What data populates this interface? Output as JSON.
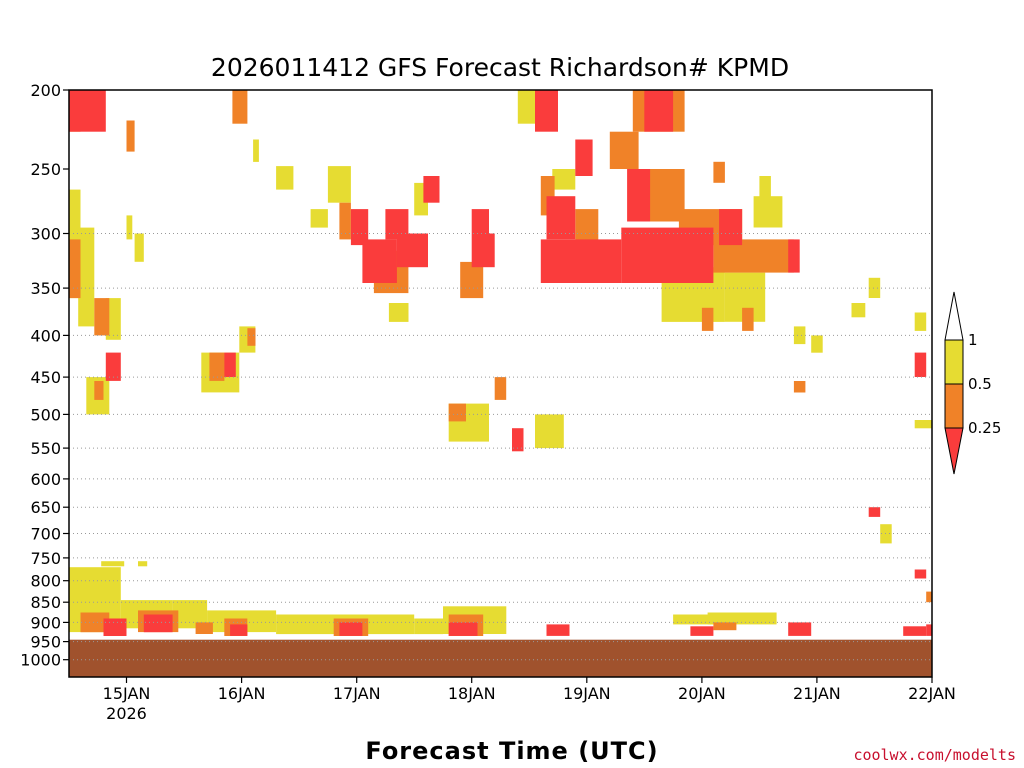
{
  "chart_data": {
    "type": "heatmap",
    "title": "2026011412 GFS Forecast Richardson# KPMD",
    "xlabel": "Forecast Time (UTC)",
    "x_axis": {
      "ticks": [
        {
          "label": "15JAN",
          "sub": "2026",
          "day": 15
        },
        {
          "label": "16JAN",
          "day": 16
        },
        {
          "label": "17JAN",
          "day": 17
        },
        {
          "label": "18JAN",
          "day": 18
        },
        {
          "label": "19JAN",
          "day": 19
        },
        {
          "label": "20JAN",
          "day": 20
        },
        {
          "label": "21JAN",
          "day": 21
        },
        {
          "label": "22JAN",
          "day": 22
        }
      ],
      "range_days": [
        14.5,
        22.0
      ]
    },
    "y_axis": {
      "unit": "hPa",
      "ticks": [
        200,
        250,
        300,
        350,
        400,
        450,
        500,
        550,
        600,
        650,
        700,
        750,
        800,
        850,
        900,
        950,
        1000
      ],
      "range": [
        200,
        1050
      ],
      "scale": "log-pressure",
      "gridlines": "dotted at 300, 350, 400, 450, 500, 550, 600, 650, 700, 750, 800, 850, 900, 950, 1000"
    },
    "legend": {
      "placement": "right",
      "levels": [
        {
          "label": "1"
        },
        {
          "label": "0.5"
        },
        {
          "label": "0.25"
        }
      ],
      "colors": {
        "above_1": "#ffffff",
        "0.5_to_1": "#e6dc32",
        "0.25_to_0.5": "#f08228",
        "below_0.25": "#fa3c3c"
      }
    },
    "ground_color": "#a0522d",
    "ground_level_hPa": 945,
    "regions": [
      {
        "cat": "red",
        "t": [
          14.5,
          14.82
        ],
        "p": [
          200,
          225
        ]
      },
      {
        "cat": "orange",
        "t": [
          14.5,
          14.6
        ],
        "p": [
          200,
          225
        ]
      },
      {
        "cat": "orange",
        "t": [
          15.0,
          15.07
        ],
        "p": [
          218,
          238
        ]
      },
      {
        "cat": "yellow",
        "t": [
          14.5,
          14.6
        ],
        "p": [
          265,
          360
        ]
      },
      {
        "cat": "orange",
        "t": [
          14.5,
          14.6
        ],
        "p": [
          305,
          360
        ]
      },
      {
        "cat": "yellow",
        "t": [
          14.58,
          14.72
        ],
        "p": [
          295,
          390
        ]
      },
      {
        "cat": "orange",
        "t": [
          14.72,
          14.85
        ],
        "p": [
          360,
          400
        ]
      },
      {
        "cat": "yellow",
        "t": [
          14.82,
          14.95
        ],
        "p": [
          360,
          405
        ]
      },
      {
        "cat": "yellow",
        "t": [
          15.0,
          15.05
        ],
        "p": [
          285,
          305
        ]
      },
      {
        "cat": "yellow",
        "t": [
          15.07,
          15.15
        ],
        "p": [
          300,
          325
        ]
      },
      {
        "cat": "red",
        "t": [
          14.82,
          14.95
        ],
        "p": [
          420,
          455
        ]
      },
      {
        "cat": "yellow",
        "t": [
          14.65,
          14.85
        ],
        "p": [
          450,
          500
        ]
      },
      {
        "cat": "orange",
        "t": [
          14.72,
          14.8
        ],
        "p": [
          455,
          480
        ]
      },
      {
        "cat": "yellow",
        "t": [
          14.78,
          14.98
        ],
        "p": [
          757,
          768
        ]
      },
      {
        "cat": "yellow",
        "t": [
          15.1,
          15.18
        ],
        "p": [
          757,
          768
        ]
      },
      {
        "cat": "orange",
        "t": [
          15.92,
          16.05
        ],
        "p": [
          200,
          220
        ]
      },
      {
        "cat": "yellow",
        "t": [
          16.1,
          16.15
        ],
        "p": [
          230,
          245
        ]
      },
      {
        "cat": "yellow",
        "t": [
          16.3,
          16.45
        ],
        "p": [
          248,
          265
        ]
      },
      {
        "cat": "yellow",
        "t": [
          15.98,
          16.12
        ],
        "p": [
          390,
          420
        ]
      },
      {
        "cat": "orange",
        "t": [
          16.05,
          16.12
        ],
        "p": [
          392,
          412
        ]
      },
      {
        "cat": "yellow",
        "t": [
          15.65,
          15.98
        ],
        "p": [
          420,
          470
        ]
      },
      {
        "cat": "orange",
        "t": [
          15.72,
          15.85
        ],
        "p": [
          420,
          455
        ]
      },
      {
        "cat": "red",
        "t": [
          15.85,
          15.95
        ],
        "p": [
          420,
          450
        ]
      },
      {
        "cat": "yellow",
        "t": [
          16.6,
          16.75
        ],
        "p": [
          280,
          295
        ]
      },
      {
        "cat": "yellow",
        "t": [
          16.75,
          16.95
        ],
        "p": [
          248,
          275
        ]
      },
      {
        "cat": "orange",
        "t": [
          16.85,
          16.95
        ],
        "p": [
          275,
          305
        ]
      },
      {
        "cat": "red",
        "t": [
          16.95,
          17.1
        ],
        "p": [
          280,
          310
        ]
      },
      {
        "cat": "red",
        "t": [
          17.05,
          17.35
        ],
        "p": [
          305,
          345
        ]
      },
      {
        "cat": "orange",
        "t": [
          17.15,
          17.45
        ],
        "p": [
          315,
          355
        ]
      },
      {
        "cat": "red",
        "t": [
          17.25,
          17.45
        ],
        "p": [
          280,
          305
        ]
      },
      {
        "cat": "red",
        "t": [
          17.35,
          17.62
        ],
        "p": [
          300,
          330
        ]
      },
      {
        "cat": "yellow",
        "t": [
          17.28,
          17.45
        ],
        "p": [
          365,
          385
        ]
      },
      {
        "cat": "yellow",
        "t": [
          17.5,
          17.62
        ],
        "p": [
          260,
          285
        ]
      },
      {
        "cat": "red",
        "t": [
          17.58,
          17.72
        ],
        "p": [
          255,
          275
        ]
      },
      {
        "cat": "yellow",
        "t": [
          17.8,
          18.15
        ],
        "p": [
          485,
          540
        ]
      },
      {
        "cat": "orange",
        "t": [
          17.8,
          17.95
        ],
        "p": [
          485,
          510
        ]
      },
      {
        "cat": "red",
        "t": [
          18.0,
          18.15
        ],
        "p": [
          280,
          300
        ]
      },
      {
        "cat": "red",
        "t": [
          18.0,
          18.2
        ],
        "p": [
          300,
          330
        ]
      },
      {
        "cat": "orange",
        "t": [
          17.9,
          18.1
        ],
        "p": [
          325,
          360
        ]
      },
      {
        "cat": "orange",
        "t": [
          18.2,
          18.3
        ],
        "p": [
          450,
          480
        ]
      },
      {
        "cat": "red",
        "t": [
          18.35,
          18.45
        ],
        "p": [
          520,
          555
        ]
      },
      {
        "cat": "yellow",
        "t": [
          18.4,
          18.6
        ],
        "p": [
          200,
          220
        ]
      },
      {
        "cat": "red",
        "t": [
          18.55,
          18.75
        ],
        "p": [
          200,
          225
        ]
      },
      {
        "cat": "yellow",
        "t": [
          18.55,
          18.8
        ],
        "p": [
          500,
          550
        ]
      },
      {
        "cat": "orange",
        "t": [
          18.6,
          18.72
        ],
        "p": [
          255,
          285
        ]
      },
      {
        "cat": "red",
        "t": [
          18.65,
          18.9
        ],
        "p": [
          270,
          305
        ]
      },
      {
        "cat": "red",
        "t": [
          18.6,
          19.3
        ],
        "p": [
          305,
          345
        ]
      },
      {
        "cat": "orange",
        "t": [
          18.9,
          19.1
        ],
        "p": [
          280,
          310
        ]
      },
      {
        "cat": "yellow",
        "t": [
          18.7,
          18.9
        ],
        "p": [
          250,
          265
        ]
      },
      {
        "cat": "red",
        "t": [
          18.9,
          19.05
        ],
        "p": [
          230,
          255
        ]
      },
      {
        "cat": "orange",
        "t": [
          19.2,
          19.45
        ],
        "p": [
          225,
          250
        ]
      },
      {
        "cat": "orange",
        "t": [
          19.4,
          19.85
        ],
        "p": [
          200,
          225
        ]
      },
      {
        "cat": "red",
        "t": [
          19.5,
          19.75
        ],
        "p": [
          200,
          225
        ]
      },
      {
        "cat": "orange",
        "t": [
          19.5,
          19.85
        ],
        "p": [
          250,
          290
        ]
      },
      {
        "cat": "red",
        "t": [
          19.35,
          19.55
        ],
        "p": [
          250,
          290
        ]
      },
      {
        "cat": "red",
        "t": [
          19.3,
          20.1
        ],
        "p": [
          295,
          345
        ]
      },
      {
        "cat": "orange",
        "t": [
          19.8,
          20.35
        ],
        "p": [
          280,
          310
        ]
      },
      {
        "cat": "red",
        "t": [
          20.15,
          20.35
        ],
        "p": [
          280,
          310
        ]
      },
      {
        "cat": "orange",
        "t": [
          20.1,
          20.8
        ],
        "p": [
          305,
          335
        ]
      },
      {
        "cat": "yellow",
        "t": [
          19.65,
          20.2
        ],
        "p": [
          330,
          385
        ]
      },
      {
        "cat": "yellow",
        "t": [
          20.2,
          20.55
        ],
        "p": [
          335,
          385
        ]
      },
      {
        "cat": "orange",
        "t": [
          20.0,
          20.1
        ],
        "p": [
          370,
          395
        ]
      },
      {
        "cat": "orange",
        "t": [
          20.35,
          20.45
        ],
        "p": [
          370,
          395
        ]
      },
      {
        "cat": "red",
        "t": [
          20.75,
          20.85
        ],
        "p": [
          305,
          335
        ]
      },
      {
        "cat": "yellow",
        "t": [
          20.45,
          20.7
        ],
        "p": [
          270,
          295
        ]
      },
      {
        "cat": "orange",
        "t": [
          20.1,
          20.2
        ],
        "p": [
          245,
          260
        ]
      },
      {
        "cat": "yellow",
        "t": [
          20.5,
          20.6
        ],
        "p": [
          255,
          280
        ]
      },
      {
        "cat": "yellow",
        "t": [
          20.95,
          21.05
        ],
        "p": [
          400,
          420
        ]
      },
      {
        "cat": "yellow",
        "t": [
          20.8,
          20.9
        ],
        "p": [
          390,
          410
        ]
      },
      {
        "cat": "orange",
        "t": [
          20.8,
          20.9
        ],
        "p": [
          455,
          470
        ]
      },
      {
        "cat": "yellow",
        "t": [
          21.3,
          21.42
        ],
        "p": [
          365,
          380
        ]
      },
      {
        "cat": "yellow",
        "t": [
          21.45,
          21.55
        ],
        "p": [
          340,
          360
        ]
      },
      {
        "cat": "red",
        "t": [
          21.85,
          21.95
        ],
        "p": [
          420,
          450
        ]
      },
      {
        "cat": "yellow",
        "t": [
          21.85,
          21.95
        ],
        "p": [
          375,
          395
        ]
      },
      {
        "cat": "yellow",
        "t": [
          21.85,
          22.0
        ],
        "p": [
          508,
          520
        ]
      },
      {
        "cat": "red",
        "t": [
          21.45,
          21.55
        ],
        "p": [
          650,
          668
        ]
      },
      {
        "cat": "yellow",
        "t": [
          21.55,
          21.65
        ],
        "p": [
          682,
          720
        ]
      },
      {
        "cat": "red",
        "t": [
          21.85,
          21.95
        ],
        "p": [
          775,
          795
        ]
      },
      {
        "cat": "orange",
        "t": [
          21.95,
          22.0
        ],
        "p": [
          825,
          850
        ]
      },
      {
        "cat": "yellow",
        "t": [
          14.5,
          14.95
        ],
        "p": [
          770,
          925
        ]
      },
      {
        "cat": "orange",
        "t": [
          14.6,
          14.85
        ],
        "p": [
          875,
          925
        ]
      },
      {
        "cat": "red",
        "t": [
          14.8,
          15.0
        ],
        "p": [
          890,
          935
        ]
      },
      {
        "cat": "yellow",
        "t": [
          14.95,
          15.4
        ],
        "p": [
          845,
          915
        ]
      },
      {
        "cat": "orange",
        "t": [
          15.1,
          15.45
        ],
        "p": [
          870,
          925
        ]
      },
      {
        "cat": "red",
        "t": [
          15.15,
          15.4
        ],
        "p": [
          880,
          925
        ]
      },
      {
        "cat": "yellow",
        "t": [
          15.4,
          15.7
        ],
        "p": [
          845,
          915
        ]
      },
      {
        "cat": "orange",
        "t": [
          15.6,
          15.75
        ],
        "p": [
          900,
          930
        ]
      },
      {
        "cat": "yellow",
        "t": [
          15.7,
          16.3
        ],
        "p": [
          870,
          925
        ]
      },
      {
        "cat": "orange",
        "t": [
          15.85,
          16.05
        ],
        "p": [
          890,
          935
        ]
      },
      {
        "cat": "red",
        "t": [
          15.9,
          16.05
        ],
        "p": [
          905,
          935
        ]
      },
      {
        "cat": "yellow",
        "t": [
          16.3,
          17.5
        ],
        "p": [
          880,
          930
        ]
      },
      {
        "cat": "orange",
        "t": [
          16.8,
          17.1
        ],
        "p": [
          890,
          935
        ]
      },
      {
        "cat": "red",
        "t": [
          16.85,
          17.05
        ],
        "p": [
          900,
          935
        ]
      },
      {
        "cat": "yellow",
        "t": [
          17.5,
          17.75
        ],
        "p": [
          890,
          930
        ]
      },
      {
        "cat": "yellow",
        "t": [
          17.75,
          18.3
        ],
        "p": [
          860,
          930
        ]
      },
      {
        "cat": "orange",
        "t": [
          17.8,
          18.1
        ],
        "p": [
          880,
          935
        ]
      },
      {
        "cat": "red",
        "t": [
          17.8,
          18.05
        ],
        "p": [
          900,
          935
        ]
      },
      {
        "cat": "red",
        "t": [
          18.65,
          18.85
        ],
        "p": [
          905,
          935
        ]
      },
      {
        "cat": "red",
        "t": [
          19.9,
          20.1
        ],
        "p": [
          910,
          935
        ]
      },
      {
        "cat": "yellow",
        "t": [
          19.75,
          20.1
        ],
        "p": [
          880,
          905
        ]
      },
      {
        "cat": "yellow",
        "t": [
          20.05,
          20.65
        ],
        "p": [
          875,
          905
        ]
      },
      {
        "cat": "orange",
        "t": [
          20.1,
          20.3
        ],
        "p": [
          900,
          920
        ]
      },
      {
        "cat": "red",
        "t": [
          20.75,
          20.95
        ],
        "p": [
          900,
          935
        ]
      },
      {
        "cat": "red",
        "t": [
          21.75,
          21.95
        ],
        "p": [
          910,
          935
        ]
      },
      {
        "cat": "red",
        "t": [
          21.95,
          22.0
        ],
        "p": [
          905,
          935
        ]
      }
    ]
  }
}
